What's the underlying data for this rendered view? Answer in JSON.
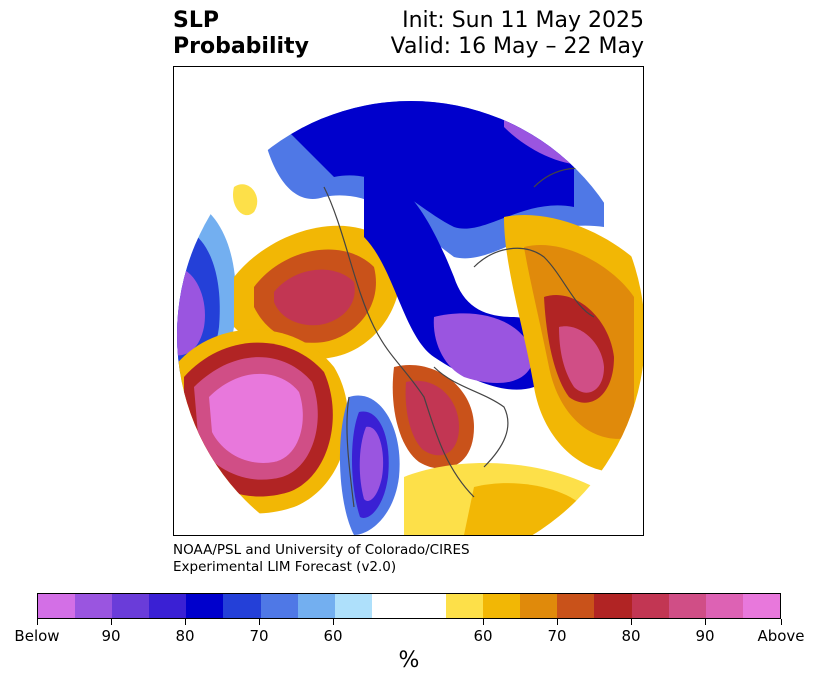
{
  "title": {
    "left_line1": "SLP",
    "left_line2": "Probability",
    "right_line1": "Init: Sun 11 May 2025",
    "right_line2": "Valid: 16 May – 22 May"
  },
  "credit": {
    "line1": "NOAA/PSL and University of Colorado/CIRES",
    "line2": "Experimental LIM Forecast (v2.0)"
  },
  "colorbar": {
    "colors": [
      "#d36fe6",
      "#9a55e0",
      "#6a3cd9",
      "#3a20d4",
      "#0000cc",
      "#2440d8",
      "#4f78e6",
      "#73aff0",
      "#aee0fb",
      "#ffffff",
      "#ffffff",
      "#fde049",
      "#f2b705",
      "#e08a0b",
      "#c9521a",
      "#b12424",
      "#c23653",
      "#d04e86",
      "#dd62b4",
      "#e878dc"
    ],
    "labels": [
      "Below",
      "90",
      "80",
      "70",
      "60",
      "60",
      "70",
      "80",
      "90",
      "Above"
    ],
    "unit": "%"
  }
}
